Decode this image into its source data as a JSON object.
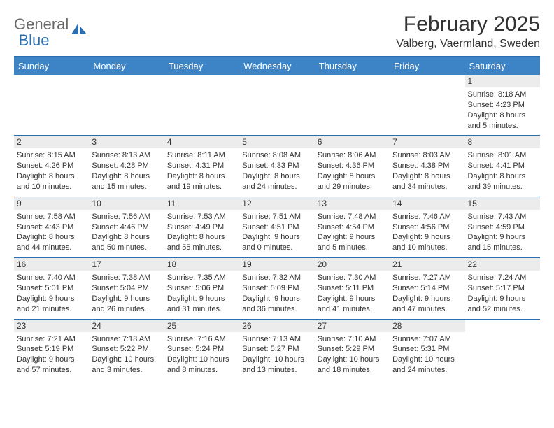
{
  "logo": {
    "word1": "General",
    "word2": "Blue"
  },
  "title": "February 2025",
  "location": "Valberg, Vaermland, Sweden",
  "colors": {
    "header_bar": "#3c84c6",
    "rule": "#2c6fb0",
    "daynum_bg": "#ececec",
    "text": "#333333",
    "logo_gray": "#6a6a6a",
    "logo_blue": "#2c6fb0",
    "background": "#ffffff"
  },
  "day_headers": [
    "Sunday",
    "Monday",
    "Tuesday",
    "Wednesday",
    "Thursday",
    "Friday",
    "Saturday"
  ],
  "weeks": [
    [
      null,
      null,
      null,
      null,
      null,
      null,
      {
        "n": "1",
        "sr": "Sunrise: 8:18 AM",
        "ss": "Sunset: 4:23 PM",
        "d1": "Daylight: 8 hours",
        "d2": "and 5 minutes."
      }
    ],
    [
      {
        "n": "2",
        "sr": "Sunrise: 8:15 AM",
        "ss": "Sunset: 4:26 PM",
        "d1": "Daylight: 8 hours",
        "d2": "and 10 minutes."
      },
      {
        "n": "3",
        "sr": "Sunrise: 8:13 AM",
        "ss": "Sunset: 4:28 PM",
        "d1": "Daylight: 8 hours",
        "d2": "and 15 minutes."
      },
      {
        "n": "4",
        "sr": "Sunrise: 8:11 AM",
        "ss": "Sunset: 4:31 PM",
        "d1": "Daylight: 8 hours",
        "d2": "and 19 minutes."
      },
      {
        "n": "5",
        "sr": "Sunrise: 8:08 AM",
        "ss": "Sunset: 4:33 PM",
        "d1": "Daylight: 8 hours",
        "d2": "and 24 minutes."
      },
      {
        "n": "6",
        "sr": "Sunrise: 8:06 AM",
        "ss": "Sunset: 4:36 PM",
        "d1": "Daylight: 8 hours",
        "d2": "and 29 minutes."
      },
      {
        "n": "7",
        "sr": "Sunrise: 8:03 AM",
        "ss": "Sunset: 4:38 PM",
        "d1": "Daylight: 8 hours",
        "d2": "and 34 minutes."
      },
      {
        "n": "8",
        "sr": "Sunrise: 8:01 AM",
        "ss": "Sunset: 4:41 PM",
        "d1": "Daylight: 8 hours",
        "d2": "and 39 minutes."
      }
    ],
    [
      {
        "n": "9",
        "sr": "Sunrise: 7:58 AM",
        "ss": "Sunset: 4:43 PM",
        "d1": "Daylight: 8 hours",
        "d2": "and 44 minutes."
      },
      {
        "n": "10",
        "sr": "Sunrise: 7:56 AM",
        "ss": "Sunset: 4:46 PM",
        "d1": "Daylight: 8 hours",
        "d2": "and 50 minutes."
      },
      {
        "n": "11",
        "sr": "Sunrise: 7:53 AM",
        "ss": "Sunset: 4:49 PM",
        "d1": "Daylight: 8 hours",
        "d2": "and 55 minutes."
      },
      {
        "n": "12",
        "sr": "Sunrise: 7:51 AM",
        "ss": "Sunset: 4:51 PM",
        "d1": "Daylight: 9 hours",
        "d2": "and 0 minutes."
      },
      {
        "n": "13",
        "sr": "Sunrise: 7:48 AM",
        "ss": "Sunset: 4:54 PM",
        "d1": "Daylight: 9 hours",
        "d2": "and 5 minutes."
      },
      {
        "n": "14",
        "sr": "Sunrise: 7:46 AM",
        "ss": "Sunset: 4:56 PM",
        "d1": "Daylight: 9 hours",
        "d2": "and 10 minutes."
      },
      {
        "n": "15",
        "sr": "Sunrise: 7:43 AM",
        "ss": "Sunset: 4:59 PM",
        "d1": "Daylight: 9 hours",
        "d2": "and 15 minutes."
      }
    ],
    [
      {
        "n": "16",
        "sr": "Sunrise: 7:40 AM",
        "ss": "Sunset: 5:01 PM",
        "d1": "Daylight: 9 hours",
        "d2": "and 21 minutes."
      },
      {
        "n": "17",
        "sr": "Sunrise: 7:38 AM",
        "ss": "Sunset: 5:04 PM",
        "d1": "Daylight: 9 hours",
        "d2": "and 26 minutes."
      },
      {
        "n": "18",
        "sr": "Sunrise: 7:35 AM",
        "ss": "Sunset: 5:06 PM",
        "d1": "Daylight: 9 hours",
        "d2": "and 31 minutes."
      },
      {
        "n": "19",
        "sr": "Sunrise: 7:32 AM",
        "ss": "Sunset: 5:09 PM",
        "d1": "Daylight: 9 hours",
        "d2": "and 36 minutes."
      },
      {
        "n": "20",
        "sr": "Sunrise: 7:30 AM",
        "ss": "Sunset: 5:11 PM",
        "d1": "Daylight: 9 hours",
        "d2": "and 41 minutes."
      },
      {
        "n": "21",
        "sr": "Sunrise: 7:27 AM",
        "ss": "Sunset: 5:14 PM",
        "d1": "Daylight: 9 hours",
        "d2": "and 47 minutes."
      },
      {
        "n": "22",
        "sr": "Sunrise: 7:24 AM",
        "ss": "Sunset: 5:17 PM",
        "d1": "Daylight: 9 hours",
        "d2": "and 52 minutes."
      }
    ],
    [
      {
        "n": "23",
        "sr": "Sunrise: 7:21 AM",
        "ss": "Sunset: 5:19 PM",
        "d1": "Daylight: 9 hours",
        "d2": "and 57 minutes."
      },
      {
        "n": "24",
        "sr": "Sunrise: 7:18 AM",
        "ss": "Sunset: 5:22 PM",
        "d1": "Daylight: 10 hours",
        "d2": "and 3 minutes."
      },
      {
        "n": "25",
        "sr": "Sunrise: 7:16 AM",
        "ss": "Sunset: 5:24 PM",
        "d1": "Daylight: 10 hours",
        "d2": "and 8 minutes."
      },
      {
        "n": "26",
        "sr": "Sunrise: 7:13 AM",
        "ss": "Sunset: 5:27 PM",
        "d1": "Daylight: 10 hours",
        "d2": "and 13 minutes."
      },
      {
        "n": "27",
        "sr": "Sunrise: 7:10 AM",
        "ss": "Sunset: 5:29 PM",
        "d1": "Daylight: 10 hours",
        "d2": "and 18 minutes."
      },
      {
        "n": "28",
        "sr": "Sunrise: 7:07 AM",
        "ss": "Sunset: 5:31 PM",
        "d1": "Daylight: 10 hours",
        "d2": "and 24 minutes."
      },
      null
    ]
  ]
}
